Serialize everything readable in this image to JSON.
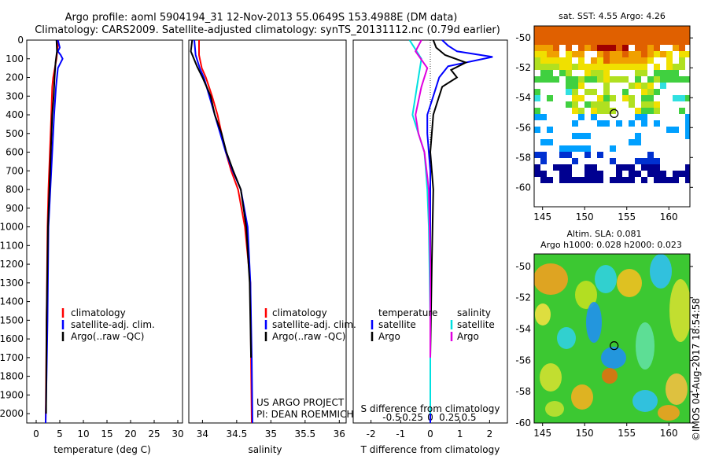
{
  "title": {
    "line1": "Argo profile: aoml 5904194_31 12-Nov-2013 55.0649S 153.4988E (DM data)",
    "line2": "Climatology: CARS2009. Satellite-adjusted climatology: synTS_20131112.nc (0.79d earlier)"
  },
  "credits": {
    "line1": "US ARGO PROJECT",
    "line2": "PI: DEAN ROEMMICH",
    "stamp": "©IMOS 04-Aug-2017 18:54:58"
  },
  "colors": {
    "climatology": "#ff0000",
    "satellite": "#0000ff",
    "argo": "#000000",
    "sal_satellite": "#00e0e0",
    "sal_argo": "#e000e0"
  },
  "chart_data": [
    {
      "id": "temperature",
      "type": "line",
      "xlabel": "temperature (deg C)",
      "xlim": [
        -2,
        31
      ],
      "xticks": [
        0,
        5,
        10,
        15,
        20,
        25,
        30
      ],
      "ylim": [
        2050,
        0
      ],
      "yticks": [
        0,
        100,
        200,
        300,
        400,
        500,
        600,
        700,
        800,
        900,
        1000,
        1100,
        1200,
        1300,
        1400,
        1500,
        1600,
        1700,
        1800,
        1900,
        2000
      ],
      "legend": [
        "climatology",
        "satellite-adj. clim.",
        "Argo(..raw -QC)"
      ],
      "series": [
        {
          "name": "climatology",
          "color_key": "climatology",
          "x": [
            4.7,
            4.5,
            4.3,
            3.6,
            3.4,
            3.2,
            2.9,
            2.6,
            2.4,
            2.2,
            2.1,
            2.0
          ],
          "y": [
            0,
            50,
            100,
            200,
            250,
            400,
            600,
            800,
            1000,
            1500,
            1800,
            2050
          ]
        },
        {
          "name": "satellite-adj. clim.",
          "color_key": "satellite",
          "x": [
            4.6,
            5.0,
            4.6,
            5.2,
            5.6,
            4.6,
            4.2,
            3.8,
            3.4,
            3.0,
            2.6,
            2.4,
            2.2,
            2.0
          ],
          "y": [
            0,
            40,
            60,
            80,
            100,
            150,
            250,
            400,
            600,
            800,
            1000,
            1500,
            1800,
            2050
          ]
        },
        {
          "name": "Argo(..raw -QC)",
          "color_key": "argo",
          "x": [
            4.3,
            4.4,
            4.1,
            3.9,
            3.7,
            3.4,
            3.1,
            2.8,
            2.5,
            2.2,
            2.1
          ],
          "y": [
            0,
            60,
            120,
            200,
            300,
            400,
            600,
            800,
            1000,
            1500,
            2000
          ]
        }
      ]
    },
    {
      "id": "salinity",
      "type": "line",
      "xlabel": "salinity",
      "xlim": [
        33.8,
        36.1
      ],
      "xticks": [
        34,
        34.5,
        35,
        35.5,
        36
      ],
      "ylim": [
        2050,
        0
      ],
      "legend": [
        "climatology",
        "satellite-adj. clim.",
        "Argo(..raw -QC)"
      ],
      "series": [
        {
          "name": "climatology",
          "color_key": "climatology",
          "x": [
            33.95,
            33.95,
            33.99,
            34.05,
            34.14,
            34.22,
            34.28,
            34.34,
            34.42,
            34.52,
            34.62,
            34.7,
            34.71,
            34.72
          ],
          "y": [
            0,
            80,
            150,
            200,
            300,
            400,
            500,
            600,
            700,
            800,
            1000,
            1300,
            1700,
            2050
          ]
        },
        {
          "name": "satellite-adj. clim.",
          "color_key": "satellite",
          "x": [
            33.88,
            33.9,
            33.96,
            34.02,
            34.1,
            34.18,
            34.26,
            34.34,
            34.44,
            34.56,
            34.66,
            34.7,
            34.72,
            34.73
          ],
          "y": [
            0,
            80,
            150,
            200,
            300,
            400,
            500,
            600,
            700,
            800,
            1000,
            1300,
            1700,
            2050
          ]
        },
        {
          "name": "Argo(..raw -QC)",
          "color_key": "argo",
          "x": [
            33.85,
            33.83,
            33.92,
            34.0,
            34.12,
            34.18,
            34.28,
            34.35,
            34.45,
            34.56,
            34.64,
            34.69,
            34.71
          ],
          "y": [
            0,
            60,
            140,
            200,
            300,
            400,
            500,
            600,
            700,
            800,
            1000,
            1300,
            1700
          ]
        }
      ]
    },
    {
      "id": "difference",
      "type": "line",
      "xlabel": "T difference from climatology",
      "xlabel_top": "S difference from climatology",
      "xlim": [
        -2.6,
        2.6
      ],
      "xticks": [
        -2,
        -1,
        0,
        1,
        2
      ],
      "xtick_labels": [
        "-2",
        "-1",
        "0",
        "1",
        "2"
      ],
      "xticks_top": [
        -1.3,
        -0.65,
        0,
        0.65,
        1.3
      ],
      "xtick_labels_top": [
        "-0.5",
        "-0.25",
        "0",
        "0.25",
        "0.5"
      ],
      "ylim": [
        2050,
        0
      ],
      "legend_titles": [
        "temperature",
        "salinity"
      ],
      "legend_temperature": [
        "satellite",
        "Argo"
      ],
      "legend_salinity": [
        "satellite",
        "Argo"
      ],
      "series": [
        {
          "name": "T satellite",
          "color_key": "satellite",
          "x": [
            0.4,
            0.6,
            0.9,
            2.1,
            1.5,
            0.6,
            0.3,
            0.1,
            -0.1,
            -0.1,
            0.0,
            0.0,
            0.0,
            0.0
          ],
          "y": [
            0,
            30,
            60,
            90,
            110,
            140,
            200,
            300,
            400,
            500,
            700,
            1000,
            1500,
            2050
          ]
        },
        {
          "name": "T Argo",
          "color_key": "argo",
          "x": [
            0.1,
            0.2,
            0.5,
            1.2,
            0.7,
            0.9,
            0.4,
            0.3,
            0.1,
            0.0,
            0.1,
            0.05,
            0.0
          ],
          "y": [
            0,
            40,
            80,
            120,
            160,
            200,
            250,
            300,
            400,
            600,
            800,
            1200,
            1700
          ]
        },
        {
          "name": "S satellite",
          "color_key": "sal_satellite",
          "x": [
            -0.7,
            -0.5,
            -0.3,
            -0.4,
            -0.6,
            -0.4,
            -0.2,
            -0.1,
            -0.05,
            0.0,
            0.0
          ],
          "y": [
            0,
            50,
            100,
            200,
            400,
            500,
            600,
            800,
            1000,
            1500,
            2000
          ]
        },
        {
          "name": "S Argo",
          "color_key": "sal_argo",
          "x": [
            -0.3,
            -0.5,
            -0.1,
            -0.3,
            -0.5,
            -0.4,
            -0.2,
            -0.05,
            0.0,
            0.0
          ],
          "y": [
            0,
            60,
            150,
            250,
            400,
            500,
            600,
            800,
            1200,
            1700
          ]
        }
      ]
    },
    {
      "id": "sst_map",
      "type": "heatmap",
      "title": "sat. SST: 4.55 Argo: 4.26",
      "xlim": [
        144,
        162.5
      ],
      "ylim": [
        -61.3,
        -49.2
      ],
      "xticks": [
        145,
        150,
        155,
        160
      ],
      "yticks": [
        -50,
        -52,
        -54,
        -56,
        -58,
        -60
      ],
      "marker": {
        "lon": 153.5,
        "lat": -55.06
      }
    },
    {
      "id": "sla_map",
      "type": "heatmap",
      "title": "Altim. SLA: 0.081",
      "subtitle": "Argo h1000: 0.028 h2000: 0.023",
      "xlim": [
        144,
        162.5
      ],
      "ylim": [
        -60.0,
        -49.2
      ],
      "xticks": [
        145,
        150,
        155,
        160
      ],
      "yticks": [
        -50,
        -52,
        -54,
        -56,
        -58,
        -60
      ],
      "marker": {
        "lon": 153.5,
        "lat": -55.06
      }
    }
  ]
}
